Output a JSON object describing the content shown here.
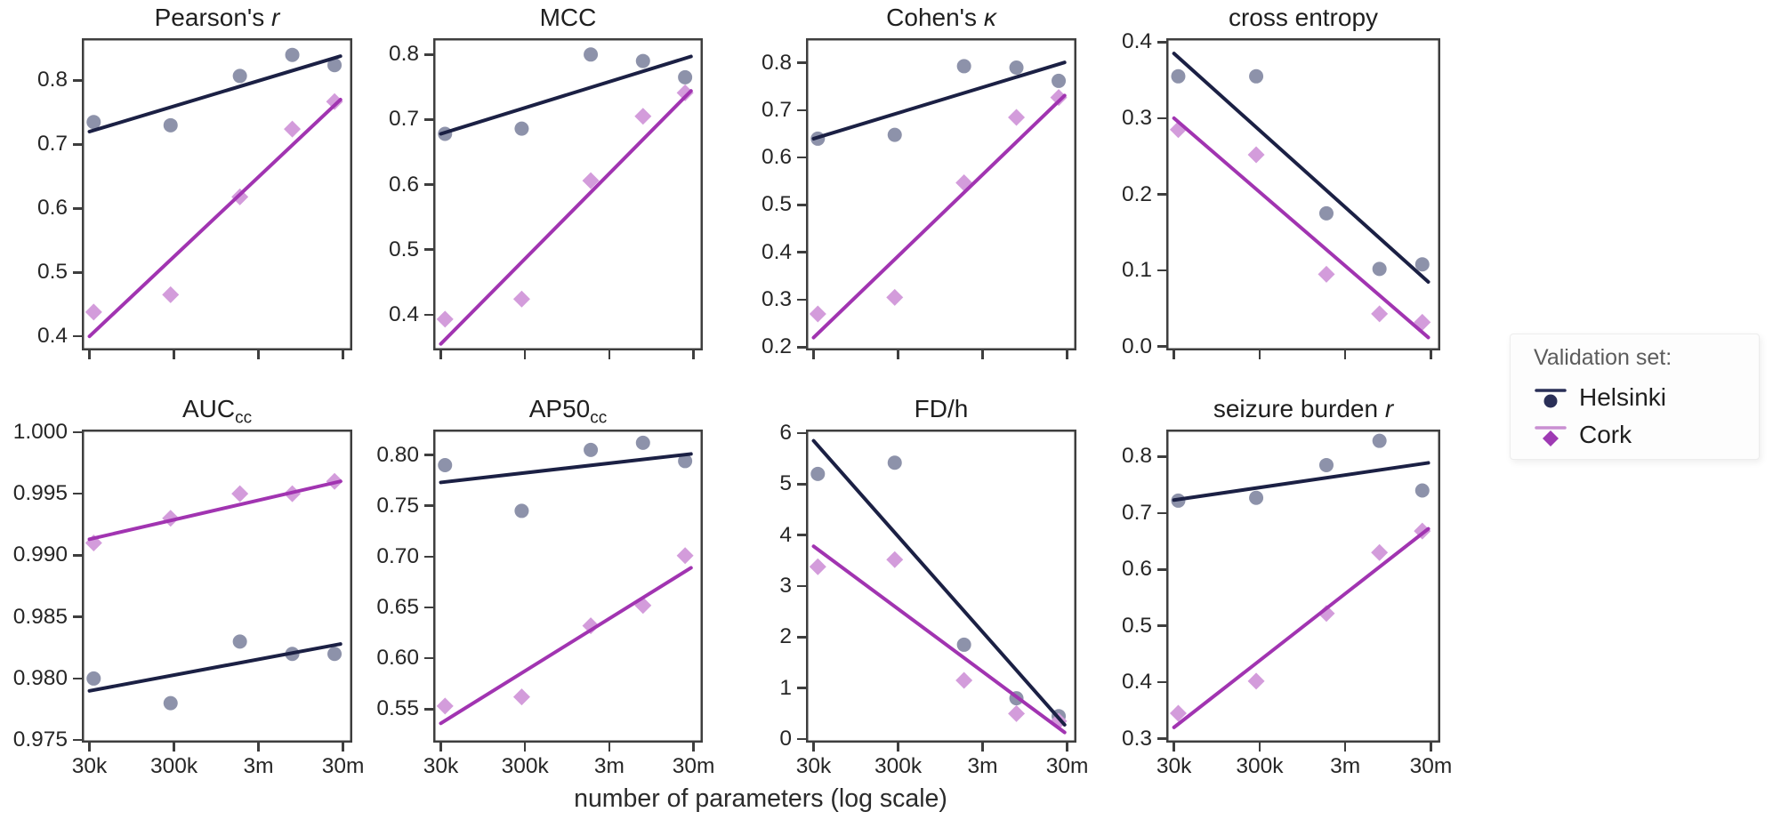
{
  "figure": {
    "xlabel": "number of parameters (log scale)",
    "x_tick_labels": [
      "30k",
      "300k",
      "3m",
      "30m"
    ],
    "x_tick_positions_log10_from_30k": [
      0,
      1,
      2,
      3
    ],
    "x_positions_log10_from_30k": [
      0.05,
      0.96,
      1.78,
      2.4,
      2.9
    ],
    "trend_extent_log10_from_30k": [
      0.0,
      2.97
    ],
    "legend": {
      "title": "Validation set:",
      "items": [
        {
          "label": "Helsinki",
          "marker": "circle"
        },
        {
          "label": "Cork",
          "marker": "diamond"
        }
      ]
    },
    "colors": {
      "helsinki_line": "#1b2044",
      "helsinki_marker": "#8d92aa",
      "cork_line": "#a134b1",
      "cork_marker": "#d39cdb",
      "legend_helsinki_marker": "#2a2f57",
      "legend_helsinki_line": "#2a2f57",
      "legend_cork_marker": "#9e3ab3",
      "legend_cork_line": "#c98fd2",
      "spine": "#3e3e3e"
    }
  },
  "chart_data": [
    {
      "type": "scatter",
      "slug": "pearsons-r",
      "title": "Pearson's r",
      "title_parts": [
        {
          "t": "Pearson's "
        },
        {
          "t": "r",
          "style": "italic"
        }
      ],
      "row": 0,
      "col": 0,
      "ylim": [
        0.378,
        0.866
      ],
      "yticks": [
        0.4,
        0.5,
        0.6,
        0.7,
        0.8
      ],
      "ytick_decimals": 1,
      "series": [
        {
          "name": "Helsinki",
          "marker": "circle",
          "values": [
            0.735,
            0.73,
            0.807,
            0.84,
            0.824
          ],
          "trend_endpoints": [
            0.72,
            0.838
          ]
        },
        {
          "name": "Cork",
          "marker": "diamond",
          "values": [
            0.438,
            0.465,
            0.618,
            0.724,
            0.767
          ],
          "trend_endpoints": [
            0.4,
            0.77
          ]
        }
      ]
    },
    {
      "type": "scatter",
      "slug": "mcc",
      "title": "MCC",
      "title_parts": [
        {
          "t": "MCC"
        }
      ],
      "row": 0,
      "col": 1,
      "ylim": [
        0.345,
        0.825
      ],
      "yticks": [
        0.4,
        0.5,
        0.6,
        0.7,
        0.8
      ],
      "ytick_decimals": 1,
      "series": [
        {
          "name": "Helsinki",
          "marker": "circle",
          "values": [
            0.678,
            0.686,
            0.8,
            0.79,
            0.765
          ],
          "trend_endpoints": [
            0.678,
            0.797
          ]
        },
        {
          "name": "Cork",
          "marker": "diamond",
          "values": [
            0.393,
            0.424,
            0.606,
            0.705,
            0.741
          ],
          "trend_endpoints": [
            0.355,
            0.744
          ]
        }
      ]
    },
    {
      "type": "scatter",
      "slug": "cohens-kappa",
      "title": "Cohen's κ",
      "title_parts": [
        {
          "t": "Cohen's "
        },
        {
          "t": "κ",
          "style": "italic"
        }
      ],
      "row": 0,
      "col": 2,
      "ylim": [
        0.193,
        0.852
      ],
      "yticks": [
        0.2,
        0.3,
        0.4,
        0.5,
        0.6,
        0.7,
        0.8
      ],
      "ytick_decimals": 1,
      "series": [
        {
          "name": "Helsinki",
          "marker": "circle",
          "values": [
            0.64,
            0.648,
            0.793,
            0.79,
            0.762
          ],
          "trend_endpoints": [
            0.64,
            0.801
          ]
        },
        {
          "name": "Cork",
          "marker": "diamond",
          "values": [
            0.27,
            0.305,
            0.547,
            0.685,
            0.727
          ],
          "trend_endpoints": [
            0.22,
            0.731
          ]
        }
      ]
    },
    {
      "type": "scatter",
      "slug": "cross-entropy",
      "title": "cross entropy",
      "title_parts": [
        {
          "t": "cross entropy"
        }
      ],
      "row": 0,
      "col": 3,
      "ylim": [
        -0.005,
        0.405
      ],
      "yticks": [
        0.0,
        0.1,
        0.2,
        0.3,
        0.4
      ],
      "ytick_decimals": 1,
      "series": [
        {
          "name": "Helsinki",
          "marker": "circle",
          "values": [
            0.355,
            0.355,
            0.175,
            0.102,
            0.108
          ],
          "trend_endpoints": [
            0.385,
            0.085
          ]
        },
        {
          "name": "Cork",
          "marker": "diamond",
          "values": [
            0.285,
            0.252,
            0.095,
            0.043,
            0.032
          ],
          "trend_endpoints": [
            0.3,
            0.012
          ]
        }
      ]
    },
    {
      "type": "scatter",
      "slug": "auc-cc",
      "title": "AUCcc",
      "title_parts": [
        {
          "t": "AUC"
        },
        {
          "t": "cc",
          "style": "sub"
        }
      ],
      "row": 1,
      "col": 0,
      "ylim": [
        0.9748,
        1.0002
      ],
      "yticks": [
        0.975,
        0.98,
        0.985,
        0.99,
        0.995,
        1.0
      ],
      "ytick_decimals": 3,
      "series": [
        {
          "name": "Helsinki",
          "marker": "circle",
          "values": [
            0.98,
            0.978,
            0.983,
            0.982,
            0.982
          ],
          "trend_endpoints": [
            0.979,
            0.9828
          ]
        },
        {
          "name": "Cork",
          "marker": "diamond",
          "values": [
            0.991,
            0.993,
            0.995,
            0.995,
            0.996
          ],
          "trend_endpoints": [
            0.9913,
            0.996
          ]
        }
      ]
    },
    {
      "type": "scatter",
      "slug": "ap50-cc",
      "title": "AP50cc",
      "title_parts": [
        {
          "t": "AP50"
        },
        {
          "t": "cc",
          "style": "sub"
        }
      ],
      "row": 1,
      "col": 1,
      "ylim": [
        0.517,
        0.825
      ],
      "yticks": [
        0.55,
        0.6,
        0.65,
        0.7,
        0.75,
        0.8
      ],
      "ytick_decimals": 2,
      "series": [
        {
          "name": "Helsinki",
          "marker": "circle",
          "values": [
            0.79,
            0.745,
            0.805,
            0.812,
            0.794
          ],
          "trend_endpoints": [
            0.773,
            0.801
          ]
        },
        {
          "name": "Cork",
          "marker": "diamond",
          "values": [
            0.553,
            0.562,
            0.632,
            0.652,
            0.701
          ],
          "trend_endpoints": [
            0.536,
            0.689
          ]
        }
      ]
    },
    {
      "type": "scatter",
      "slug": "fd-per-h",
      "title": "FD/h",
      "title_parts": [
        {
          "t": "FD/h"
        }
      ],
      "row": 1,
      "col": 2,
      "ylim": [
        -0.07,
        6.07
      ],
      "yticks": [
        0,
        1,
        2,
        3,
        4,
        5,
        6
      ],
      "ytick_decimals": 0,
      "series": [
        {
          "name": "Helsinki",
          "marker": "circle",
          "values": [
            5.2,
            5.42,
            1.85,
            0.8,
            0.45
          ],
          "trend_endpoints": [
            5.85,
            0.28
          ]
        },
        {
          "name": "Cork",
          "marker": "diamond",
          "values": [
            3.38,
            3.52,
            1.15,
            0.5,
            0.35
          ],
          "trend_endpoints": [
            3.78,
            0.13
          ]
        }
      ]
    },
    {
      "type": "scatter",
      "slug": "seizure-burden-r",
      "title": "seizure burden r",
      "title_parts": [
        {
          "t": "seizure burden "
        },
        {
          "t": "r",
          "style": "italic"
        }
      ],
      "row": 1,
      "col": 3,
      "ylim": [
        0.293,
        0.848
      ],
      "yticks": [
        0.3,
        0.4,
        0.5,
        0.6,
        0.7,
        0.8
      ],
      "ytick_decimals": 1,
      "series": [
        {
          "name": "Helsinki",
          "marker": "circle",
          "values": [
            0.722,
            0.727,
            0.785,
            0.828,
            0.74
          ],
          "trend_endpoints": [
            0.723,
            0.789
          ]
        },
        {
          "name": "Cork",
          "marker": "diamond",
          "values": [
            0.345,
            0.402,
            0.522,
            0.63,
            0.668
          ],
          "trend_endpoints": [
            0.32,
            0.672
          ]
        }
      ]
    }
  ]
}
